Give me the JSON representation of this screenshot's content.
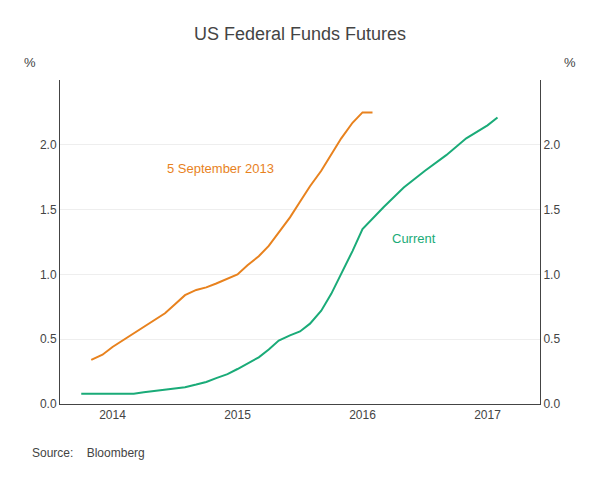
{
  "chart_data": {
    "type": "line",
    "title": "US Federal Funds Futures",
    "source": "Source:    Bloomberg",
    "ylabel": "%",
    "y2label": "%",
    "xlim": [
      2013.58,
      2017.42
    ],
    "xticks": [
      2014,
      2015,
      2016,
      2017
    ],
    "ylim": [
      0.0,
      2.5
    ],
    "yticks": [
      {
        "value": 0.0,
        "label": "0.0"
      },
      0.5,
      {
        "value": 1.0,
        "label": "1.0"
      },
      1.5,
      {
        "value": 2.0,
        "label": "2.0"
      }
    ],
    "y2lim": [
      0.0,
      2.5
    ],
    "y2ticks": [
      {
        "value": 0.0,
        "label": "0.0"
      },
      0.5,
      {
        "value": 1.0,
        "label": "1.0"
      },
      1.5,
      {
        "value": 2.0,
        "label": "2.0"
      }
    ],
    "grid": true,
    "series": [
      {
        "name": "5 September 2013",
        "color": "#E8821E",
        "x": [
          2013.83,
          2013.92,
          2014.0,
          2014.08,
          2014.17,
          2014.25,
          2014.33,
          2014.42,
          2014.5,
          2014.58,
          2014.67,
          2014.75,
          2014.83,
          2014.92,
          2015.0,
          2015.08,
          2015.17,
          2015.25,
          2015.33,
          2015.42,
          2015.5,
          2015.58,
          2015.67,
          2015.75,
          2015.83,
          2015.92,
          2016.0,
          2016.08
        ],
        "values": [
          0.34,
          0.38,
          0.44,
          0.49,
          0.54,
          0.59,
          0.64,
          0.7,
          0.77,
          0.84,
          0.88,
          0.9,
          0.93,
          0.97,
          1.0,
          1.07,
          1.14,
          1.22,
          1.32,
          1.44,
          1.56,
          1.68,
          1.8,
          1.93,
          2.05,
          2.17,
          2.25,
          2.25
        ]
      },
      {
        "name": "Current",
        "color": "#1AAB78",
        "x": [
          2013.75,
          2013.83,
          2013.92,
          2014.0,
          2014.08,
          2014.17,
          2014.25,
          2014.33,
          2014.42,
          2014.5,
          2014.58,
          2014.67,
          2014.75,
          2014.83,
          2014.92,
          2015.0,
          2015.08,
          2015.17,
          2015.25,
          2015.33,
          2015.42,
          2015.5,
          2015.58,
          2015.67,
          2015.75,
          2015.83,
          2015.92,
          2016.0,
          2016.17,
          2016.33,
          2016.5,
          2016.67,
          2016.83,
          2017.0,
          2017.08
        ],
        "values": [
          0.08,
          0.08,
          0.08,
          0.08,
          0.08,
          0.08,
          0.09,
          0.1,
          0.11,
          0.12,
          0.13,
          0.15,
          0.17,
          0.2,
          0.23,
          0.27,
          0.31,
          0.36,
          0.42,
          0.49,
          0.53,
          0.56,
          0.62,
          0.72,
          0.85,
          1.0,
          1.18,
          1.35,
          1.52,
          1.67,
          1.8,
          1.92,
          2.05,
          2.15,
          2.21
        ]
      }
    ],
    "annotations": [
      {
        "text": "5 September 2013",
        "x": 2014.42,
        "y": 1.82
      },
      {
        "text": "Current",
        "x": 2016.22,
        "y": 1.28
      }
    ]
  }
}
